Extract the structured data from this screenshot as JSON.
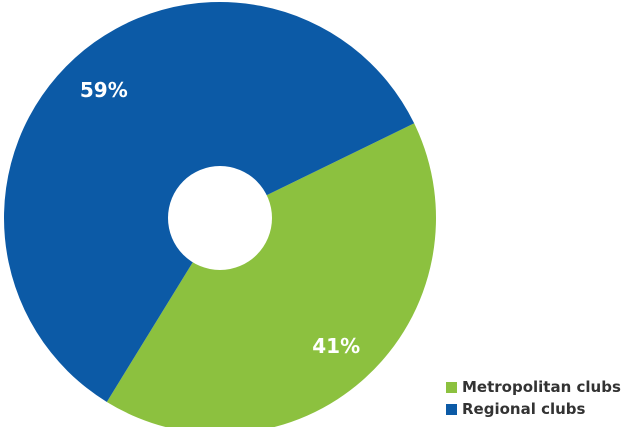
{
  "chart_data": {
    "type": "pie",
    "style": "donut",
    "categories": [
      "Metropolitan clubs",
      "Regional clubs"
    ],
    "values": [
      41,
      59
    ],
    "labels": [
      "41%",
      "59%"
    ],
    "colors": [
      "#8cc13f",
      "#0c5aa6"
    ],
    "legend": "bottom-right"
  },
  "legend": {
    "items": [
      {
        "label": "Metropolitan clubs",
        "color": "#8cc13f"
      },
      {
        "label": "Regional clubs",
        "color": "#0c5aa6"
      }
    ]
  }
}
